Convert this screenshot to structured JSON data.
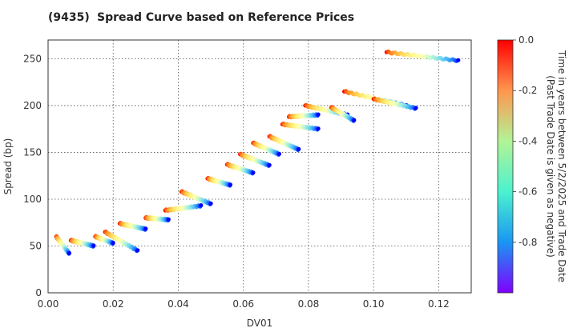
{
  "chart_data": {
    "type": "scatter",
    "title_code": "(9435)",
    "title": "Spread Curve based on Reference Prices",
    "xlabel": "DV01",
    "ylabel": "Spread (bp)",
    "xlim": [
      0.0,
      0.13
    ],
    "ylim": [
      0,
      270
    ],
    "xticks": [
      "0.00",
      "0.02",
      "0.04",
      "0.06",
      "0.08",
      "0.10",
      "0.12"
    ],
    "yticks": [
      "0",
      "50",
      "100",
      "150",
      "200",
      "250"
    ],
    "grid": true,
    "colorbar": {
      "label_line1": "Time in years between 5/2/2025 and Trade Date",
      "label_line2": "(Past Trade Date is given as negative)",
      "range": [
        -1.0,
        0.0
      ],
      "ticks": [
        "0.0",
        "-0.2",
        "-0.4",
        "-0.6",
        "-0.8"
      ],
      "colormap": "rainbow"
    },
    "clusters": [
      {
        "x_start": 0.0025,
        "x_end": 0.0065,
        "y_new": 60,
        "y_old": 42
      },
      {
        "x_start": 0.007,
        "x_end": 0.014,
        "y_new": 56,
        "y_old": 50
      },
      {
        "x_start": 0.0145,
        "x_end": 0.02,
        "y_new": 60,
        "y_old": 53
      },
      {
        "x_start": 0.0175,
        "x_end": 0.0275,
        "y_new": 65,
        "y_old": 45
      },
      {
        "x_start": 0.022,
        "x_end": 0.03,
        "y_new": 74,
        "y_old": 68
      },
      {
        "x_start": 0.03,
        "x_end": 0.037,
        "y_new": 80,
        "y_old": 78
      },
      {
        "x_start": 0.036,
        "x_end": 0.047,
        "y_new": 88,
        "y_old": 93
      },
      {
        "x_start": 0.041,
        "x_end": 0.05,
        "y_new": 108,
        "y_old": 95
      },
      {
        "x_start": 0.049,
        "x_end": 0.056,
        "y_new": 122,
        "y_old": 115
      },
      {
        "x_start": 0.055,
        "x_end": 0.063,
        "y_new": 137,
        "y_old": 128
      },
      {
        "x_start": 0.059,
        "x_end": 0.068,
        "y_new": 148,
        "y_old": 136
      },
      {
        "x_start": 0.063,
        "x_end": 0.071,
        "y_new": 160,
        "y_old": 148
      },
      {
        "x_start": 0.068,
        "x_end": 0.077,
        "y_new": 167,
        "y_old": 153
      },
      {
        "x_start": 0.072,
        "x_end": 0.083,
        "y_new": 180,
        "y_old": 175
      },
      {
        "x_start": 0.074,
        "x_end": 0.083,
        "y_new": 188,
        "y_old": 190
      },
      {
        "x_start": 0.079,
        "x_end": 0.092,
        "y_new": 200,
        "y_old": 190
      },
      {
        "x_start": 0.087,
        "x_end": 0.094,
        "y_new": 198,
        "y_old": 184
      },
      {
        "x_start": 0.091,
        "x_end": 0.11,
        "y_new": 215,
        "y_old": 200
      },
      {
        "x_start": 0.1,
        "x_end": 0.113,
        "y_new": 207,
        "y_old": 197
      },
      {
        "x_start": 0.104,
        "x_end": 0.126,
        "y_new": 257,
        "y_old": 248
      }
    ]
  }
}
